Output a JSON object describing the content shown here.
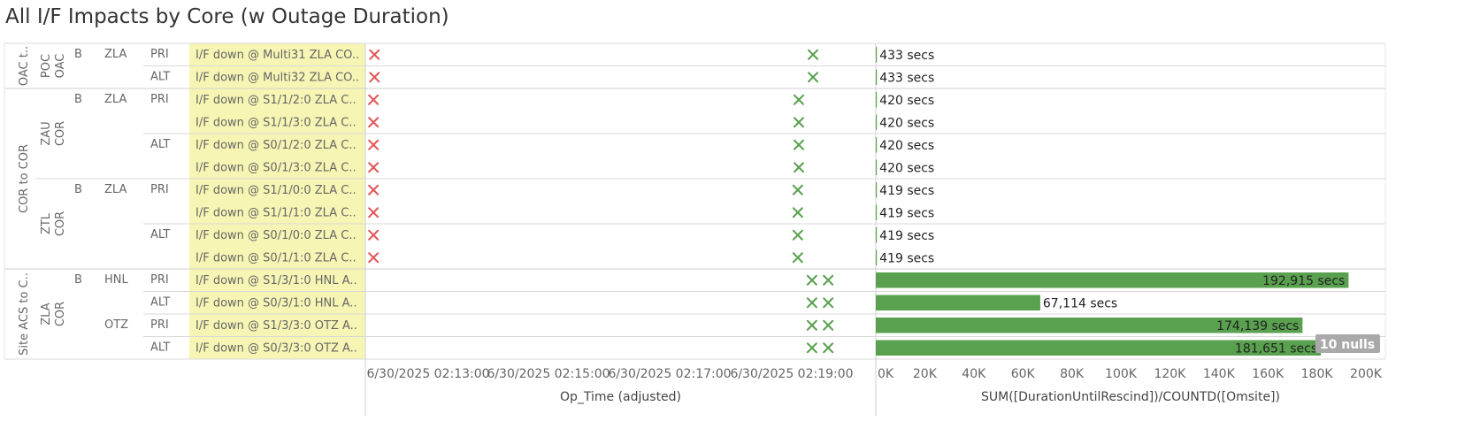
{
  "title": "All I/F Impacts by Core (w Outage Duration)",
  "colors": {
    "down": "#e15759",
    "up": "#59a14f",
    "bar": "#59a14f",
    "highlight": "#f7f5b4",
    "nulls_badge": "#a9a9a9"
  },
  "chart_data": {
    "type": "table",
    "groups": [
      {
        "label": "OAC t..",
        "rows": [
          0,
          1
        ]
      },
      {
        "label": "COR to COR",
        "rows": [
          2,
          9
        ]
      },
      {
        "label": "Site ACS to C..",
        "rows": [
          10,
          13
        ]
      }
    ],
    "sub_groups": [
      {
        "lines": [
          "OAC",
          "POC"
        ],
        "rows": [
          0,
          1
        ]
      },
      {
        "lines": [
          "COR",
          "ZAU"
        ],
        "rows": [
          2,
          5
        ]
      },
      {
        "lines": [
          "COR",
          "ZTL"
        ],
        "rows": [
          6,
          9
        ]
      },
      {
        "lines": [
          "COR",
          "ZLA"
        ],
        "rows": [
          10,
          13
        ]
      }
    ],
    "row_headers": [
      "B",
      "B",
      "B",
      "B"
    ],
    "sites": [
      {
        "label": "ZLA",
        "rows": [
          0,
          1
        ]
      },
      {
        "label": "ZLA",
        "rows": [
          2,
          5
        ]
      },
      {
        "label": "ZLA",
        "rows": [
          6,
          9
        ]
      },
      {
        "label": "HNL",
        "rows": [
          10,
          11
        ]
      },
      {
        "label": "OTZ",
        "rows": [
          12,
          13
        ]
      }
    ],
    "paths": [
      {
        "label": "PRI",
        "rows": [
          0,
          0
        ]
      },
      {
        "label": "ALT",
        "rows": [
          1,
          1
        ]
      },
      {
        "label": "PRI",
        "rows": [
          2,
          3
        ]
      },
      {
        "label": "ALT",
        "rows": [
          4,
          5
        ]
      },
      {
        "label": "PRI",
        "rows": [
          6,
          7
        ]
      },
      {
        "label": "ALT",
        "rows": [
          8,
          9
        ]
      },
      {
        "label": "PRI",
        "rows": [
          10,
          10
        ]
      },
      {
        "label": "ALT",
        "rows": [
          11,
          11
        ]
      },
      {
        "label": "PRI",
        "rows": [
          12,
          12
        ]
      },
      {
        "label": "ALT",
        "rows": [
          13,
          13
        ]
      }
    ],
    "interfaces": [
      "I/F down @ Multi31 ZLA CO..",
      "I/F down @ Multi32 ZLA CO..",
      "I/F down @ S1/1/2:0 ZLA C..",
      "I/F down @ S1/1/3:0 ZLA C..",
      "I/F down @ S0/1/2:0 ZLA C..",
      "I/F down @ S0/1/3:0 ZLA C..",
      "I/F down @ S1/1/0:0 ZLA C..",
      "I/F down @ S1/1/1:0 ZLA C..",
      "I/F down @ S0/1/0:0 ZLA C..",
      "I/F down @ S0/1/1:0 ZLA C..",
      "I/F down @ S1/3/1:0 HNL A..",
      "I/F down @ S0/3/1:0 HNL A..",
      "I/F down @ S1/3/3:0 OTZ A..",
      "I/F down @ S0/3/3:0 OTZ A.."
    ],
    "timeline": {
      "xlabel": "Op_Time (adjusted)",
      "ticks": [
        "6/30/2025 02:13:00",
        "6/30/2025 02:15:00",
        "6/30/2025 02:17:00",
        "6/30/2025 02:19:00"
      ],
      "xlim": [
        "2025-06-30 02:12:31",
        "2025-06-30 02:20:55"
      ],
      "down_times": [
        "2025-06-30 02:12:40",
        "2025-06-30 02:12:40",
        "2025-06-30 02:12:39",
        "2025-06-30 02:12:39",
        "2025-06-30 02:12:39",
        "2025-06-30 02:12:39",
        "2025-06-30 02:12:39",
        "2025-06-30 02:12:39",
        "2025-06-30 02:12:39",
        "2025-06-30 02:12:39",
        null,
        null,
        null,
        null
      ],
      "up_times": [
        [
          "2025-06-30 02:19:53"
        ],
        [
          "2025-06-30 02:19:53"
        ],
        [
          "2025-06-30 02:19:39"
        ],
        [
          "2025-06-30 02:19:39"
        ],
        [
          "2025-06-30 02:19:39"
        ],
        [
          "2025-06-30 02:19:39"
        ],
        [
          "2025-06-30 02:19:38"
        ],
        [
          "2025-06-30 02:19:38"
        ],
        [
          "2025-06-30 02:19:38"
        ],
        [
          "2025-06-30 02:19:38"
        ],
        [
          "2025-06-30 02:19:52",
          "2025-06-30 02:20:08"
        ],
        [
          "2025-06-30 02:19:52",
          "2025-06-30 02:20:08"
        ],
        [
          "2025-06-30 02:19:52",
          "2025-06-30 02:20:08"
        ],
        [
          "2025-06-30 02:19:52",
          "2025-06-30 02:20:08"
        ]
      ]
    },
    "duration": {
      "xlabel": "SUM([DurationUntilRescind])/COUNTD([Omsite])",
      "xlim": [
        0,
        200000
      ],
      "ticks": [
        0,
        20000,
        40000,
        60000,
        80000,
        100000,
        120000,
        140000,
        160000,
        180000,
        200000
      ],
      "tick_labels": [
        "0K",
        "20K",
        "40K",
        "60K",
        "80K",
        "100K",
        "120K",
        "140K",
        "160K",
        "180K",
        "200K"
      ],
      "values": [
        433,
        433,
        420,
        420,
        420,
        420,
        419,
        419,
        419,
        419,
        192915,
        67114,
        174139,
        181651
      ],
      "labels": [
        "433 secs",
        "433 secs",
        "420 secs",
        "420 secs",
        "420 secs",
        "420 secs",
        "419 secs",
        "419 secs",
        "419 secs",
        "419 secs",
        "192,915 secs",
        "67,114 secs",
        "174,139 secs",
        "181,651 secs"
      ]
    },
    "nulls_badge": "10 nulls"
  }
}
